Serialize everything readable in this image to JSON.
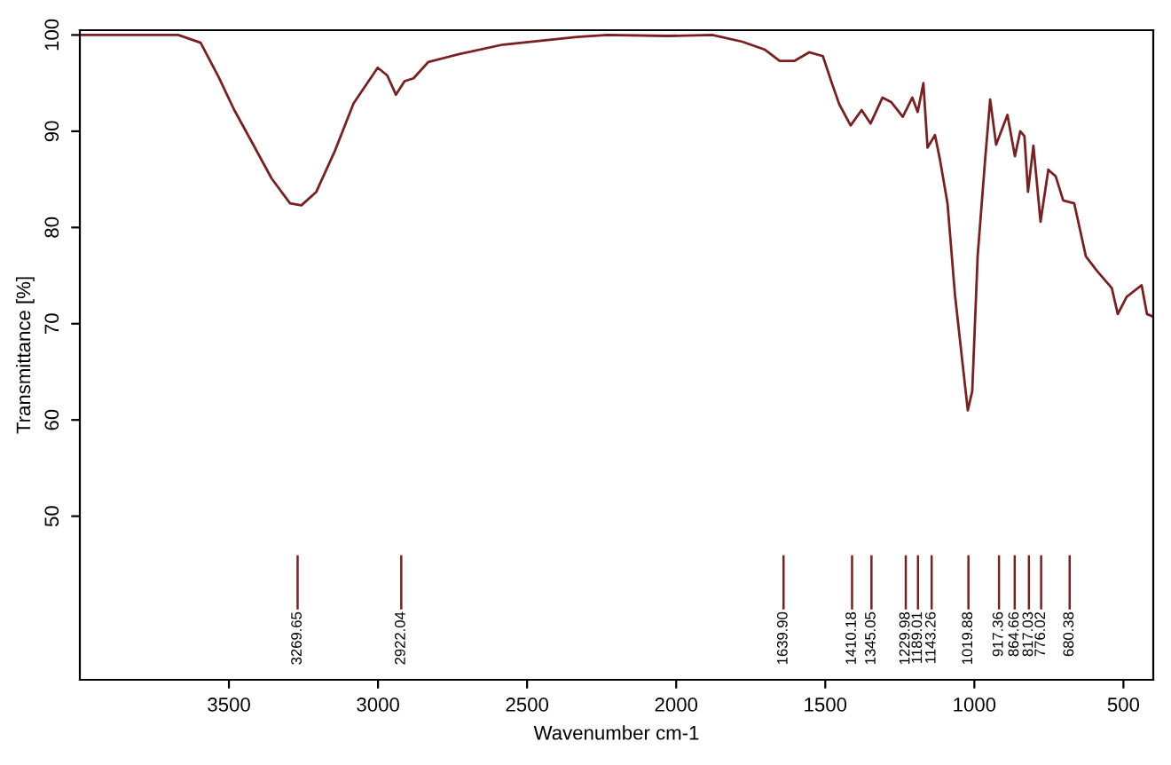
{
  "chart_data": {
    "type": "line",
    "xlabel": "Wavenumber cm-1",
    "ylabel": "Transmittance [%]",
    "xlim": [
      4000,
      400
    ],
    "ylim": [
      33,
      100.5
    ],
    "xticks": [
      3500,
      3000,
      2500,
      2000,
      1500,
      1000,
      500
    ],
    "yticks": [
      50,
      60,
      70,
      80,
      90,
      100
    ],
    "grid": false,
    "legend": false,
    "series": [
      {
        "color": "#7a2020",
        "x": [
          4000,
          3670,
          3595,
          3534,
          3482,
          3420,
          3357,
          3295,
          3257,
          3207,
          3144,
          3082,
          3001,
          2969,
          2940,
          2911,
          2881,
          2831,
          2730,
          2581,
          2332,
          2230,
          2029,
          1879,
          1778,
          1704,
          1653,
          1604,
          1554,
          1508,
          1478,
          1453,
          1415,
          1378,
          1348,
          1308,
          1278,
          1240,
          1208,
          1190,
          1171,
          1157,
          1132,
          1115,
          1090,
          1065,
          1040,
          1022,
          1007,
          989,
          964,
          947,
          927,
          889,
          864,
          846,
          832,
          820,
          802,
          778,
          752,
          727,
          702,
          665,
          626,
          589,
          539,
          519,
          489,
          439,
          421,
          405
        ],
        "values": [
          100,
          100,
          99.2,
          95.6,
          92.2,
          88.7,
          85.1,
          82.5,
          82.3,
          83.7,
          88,
          92.9,
          96.6,
          95.8,
          93.8,
          95.2,
          95.5,
          97.2,
          98,
          99,
          99.8,
          100,
          99.9,
          100,
          99.3,
          98.5,
          97.3,
          97.3,
          98.2,
          97.8,
          95,
          92.8,
          90.6,
          92.2,
          90.8,
          93.5,
          93,
          91.5,
          93.5,
          92,
          95,
          88.3,
          89.6,
          87,
          82.5,
          73,
          66,
          61,
          63,
          77,
          87,
          93.3,
          88.6,
          91.7,
          87.4,
          90,
          89.5,
          83.7,
          88.5,
          80.6,
          86,
          85.3,
          82.8,
          82.5,
          77,
          75.5,
          73.7,
          71,
          72.8,
          74,
          71,
          70.8
        ]
      }
    ],
    "ref_lines": [
      {
        "axis": "x",
        "value": 3269.65,
        "label": "3269.65",
        "color": "#7a2020"
      },
      {
        "axis": "x",
        "value": 2922.04,
        "label": "2922.04",
        "color": "#7a2020"
      },
      {
        "axis": "x",
        "value": 1639.9,
        "label": "1639.90",
        "color": "#7a2020"
      },
      {
        "axis": "x",
        "value": 1410.18,
        "label": "1410.18",
        "color": "#7a2020"
      },
      {
        "axis": "x",
        "value": 1345.05,
        "label": "1345.05",
        "color": "#7a2020"
      },
      {
        "axis": "x",
        "value": 1229.98,
        "label": "1229.98",
        "color": "#7a2020"
      },
      {
        "axis": "x",
        "value": 1189.01,
        "label": "1189.01",
        "color": "#7a2020"
      },
      {
        "axis": "x",
        "value": 1143.26,
        "label": "1143.26",
        "color": "#7a2020"
      },
      {
        "axis": "x",
        "value": 1019.88,
        "label": "1019.88",
        "color": "#7a2020"
      },
      {
        "axis": "x",
        "value": 917.36,
        "label": "917.36",
        "color": "#7a2020"
      },
      {
        "axis": "x",
        "value": 864.66,
        "label": "864.66",
        "color": "#7a2020"
      },
      {
        "axis": "x",
        "value": 817.03,
        "label": "817.03",
        "color": "#7a2020"
      },
      {
        "axis": "x",
        "value": 776.02,
        "label": "776.02",
        "color": "#7a2020"
      },
      {
        "axis": "x",
        "value": 680.38,
        "label": "680.38",
        "color": "#7a2020"
      }
    ]
  }
}
